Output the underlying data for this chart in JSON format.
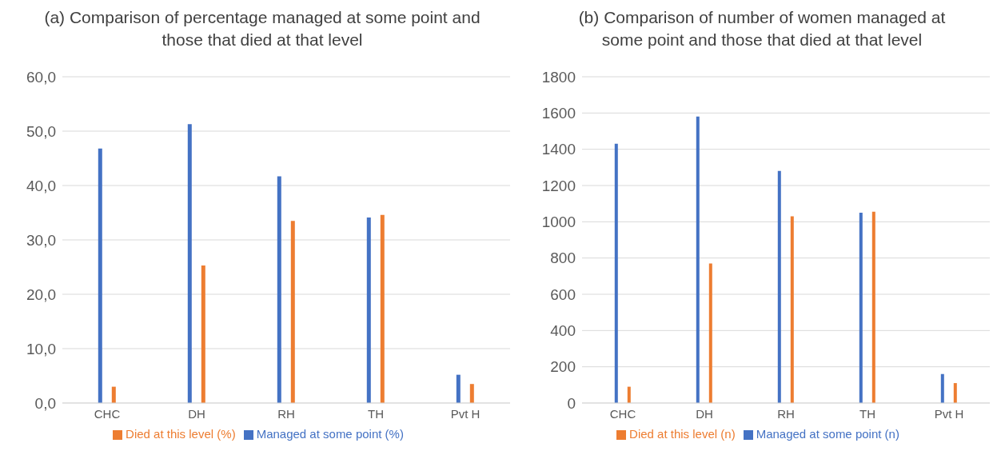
{
  "chart_data": [
    {
      "type": "bar",
      "title": "(a) Comparison of percentage managed at some point and those that died at that level",
      "categories": [
        "CHC",
        "DH",
        "RH",
        "TH",
        "Pvt H"
      ],
      "series": [
        {
          "name": "Managed at some point (%)",
          "color": "#4472c4",
          "values": [
            46.8,
            51.3,
            41.7,
            34.1,
            5.2
          ]
        },
        {
          "name": "Died at this level (%)",
          "color": "#ed7d31",
          "values": [
            3.0,
            25.3,
            33.5,
            34.6,
            3.5
          ]
        }
      ],
      "ylim": [
        0,
        60
      ],
      "yticks": [
        {
          "value": 0,
          "label": "0,0"
        },
        {
          "value": 10,
          "label": "10,0"
        },
        {
          "value": 20,
          "label": "20,0"
        },
        {
          "value": 30,
          "label": "30,0"
        },
        {
          "value": 40,
          "label": "40,0"
        },
        {
          "value": 50,
          "label": "50,0"
        },
        {
          "value": 60,
          "label": "60,0"
        }
      ],
      "grid": "y",
      "legend": "bottom"
    },
    {
      "type": "bar",
      "title": "(b) Comparison of number of women managed at some point and those that died at that level",
      "categories": [
        "CHC",
        "DH",
        "RH",
        "TH",
        "Pvt H"
      ],
      "series": [
        {
          "name": "Managed at some point (n)",
          "color": "#4472c4",
          "values": [
            1430,
            1580,
            1280,
            1050,
            160
          ]
        },
        {
          "name": "Died at this level (n)",
          "color": "#ed7d31",
          "values": [
            90,
            770,
            1030,
            1055,
            110
          ]
        }
      ],
      "ylim": [
        0,
        1800
      ],
      "yticks": [
        0,
        200,
        400,
        600,
        800,
        1000,
        1200,
        1400,
        1600,
        1800
      ],
      "grid": "y",
      "legend": "bottom"
    }
  ]
}
